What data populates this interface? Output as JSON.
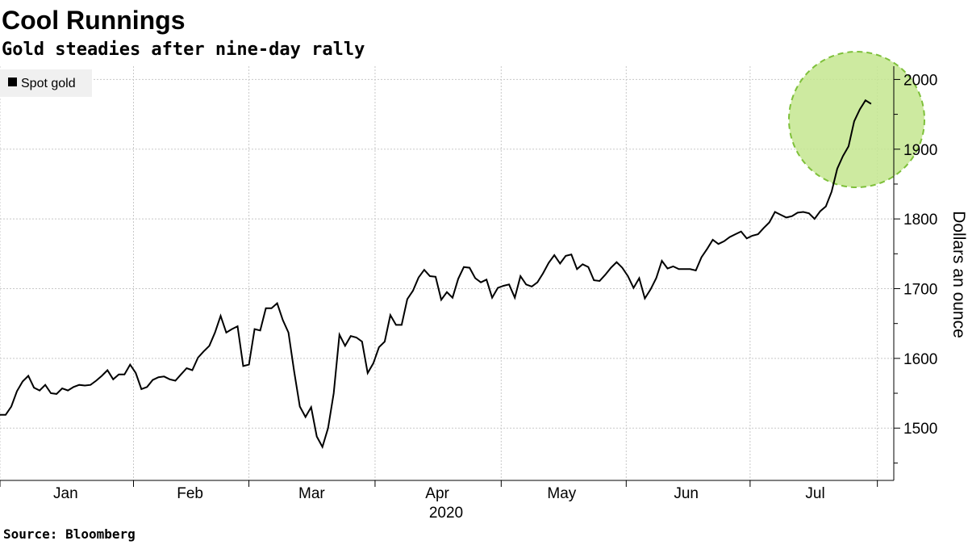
{
  "chart_data": {
    "type": "line",
    "title": "Cool Runnings",
    "subtitle": "Gold steadies after nine-day rally",
    "source": "Source: Bloomberg",
    "ylabel": "Dollars an ounce",
    "xlabel": "2020",
    "series": [
      {
        "name": "Spot gold",
        "color": "#000000",
        "values": [
          1519,
          1519,
          1531,
          1553,
          1567,
          1575,
          1558,
          1554,
          1562,
          1550,
          1549,
          1557,
          1554,
          1559,
          1562,
          1561,
          1562,
          1568,
          1575,
          1583,
          1570,
          1577,
          1577,
          1591,
          1579,
          1556,
          1559,
          1569,
          1573,
          1574,
          1570,
          1568,
          1577,
          1586,
          1583,
          1601,
          1610,
          1618,
          1637,
          1661,
          1637,
          1642,
          1646,
          1589,
          1591,
          1642,
          1640,
          1672,
          1672,
          1679,
          1655,
          1637,
          1581,
          1531,
          1516,
          1530,
          1488,
          1473,
          1500,
          1550,
          1634,
          1618,
          1632,
          1630,
          1624,
          1579,
          1593,
          1616,
          1624,
          1662,
          1648,
          1648,
          1685,
          1697,
          1716,
          1727,
          1718,
          1717,
          1684,
          1695,
          1687,
          1714,
          1731,
          1730,
          1715,
          1709,
          1713,
          1687,
          1701,
          1704,
          1706,
          1687,
          1718,
          1706,
          1703,
          1709,
          1722,
          1737,
          1748,
          1736,
          1747,
          1749,
          1728,
          1735,
          1731,
          1712,
          1711,
          1720,
          1730,
          1738,
          1730,
          1718,
          1701,
          1715,
          1686,
          1699,
          1715,
          1740,
          1729,
          1732,
          1728,
          1728,
          1728,
          1726,
          1745,
          1757,
          1770,
          1764,
          1768,
          1774,
          1778,
          1782,
          1772,
          1776,
          1778,
          1787,
          1795,
          1810,
          1806,
          1802,
          1804,
          1809,
          1810,
          1808,
          1800,
          1811,
          1818,
          1839,
          1872,
          1890,
          1904,
          1940,
          1957,
          1970,
          1965
        ]
      }
    ],
    "xlim": [
      0,
      158
    ],
    "xgrid": [
      0,
      23.6,
      44,
      66.3,
      88.6,
      110.7,
      132.6,
      155.1
    ],
    "xticks": [
      {
        "value": 11.6,
        "label": "Jan"
      },
      {
        "value": 33.6,
        "label": "Feb"
      },
      {
        "value": 55.1,
        "label": "Mar"
      },
      {
        "value": 77.3,
        "label": "Apr"
      },
      {
        "value": 99.3,
        "label": "May"
      },
      {
        "value": 121.3,
        "label": "Jun"
      },
      {
        "value": 144.1,
        "label": "Jul"
      }
    ],
    "ylim": [
      1425,
      2019
    ],
    "yticks": [
      1500,
      1600,
      1700,
      1800,
      1900,
      2000
    ],
    "yminorticks": [
      1450,
      1550,
      1650,
      1750,
      1850,
      1950
    ],
    "grid": true,
    "legend": "top-left"
  }
}
